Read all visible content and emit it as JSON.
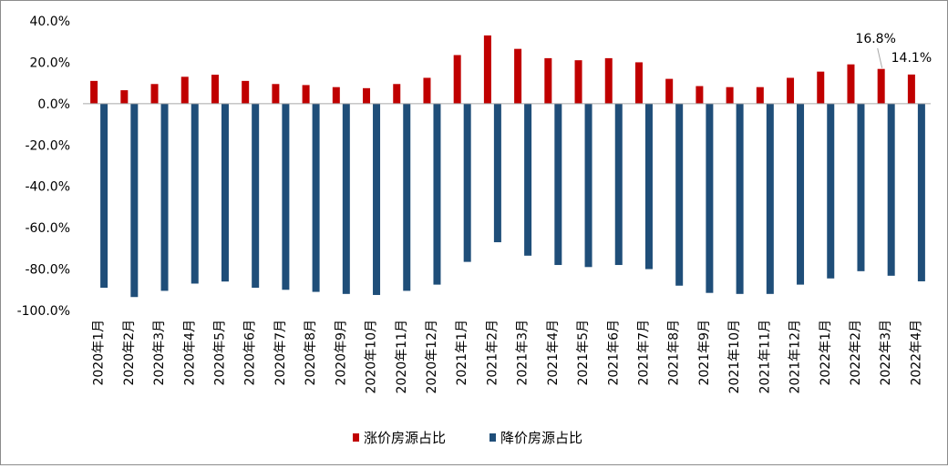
{
  "chart_data": {
    "type": "bar",
    "title": "",
    "xlabel": "",
    "ylabel": "",
    "ylim": [
      -100,
      40
    ],
    "yticks": [
      40,
      20,
      0,
      -20,
      -40,
      -60,
      -80,
      -100
    ],
    "ytick_labels": [
      "40.0%",
      "20.0%",
      "0.0%",
      "-20.0%",
      "-40.0%",
      "-60.0%",
      "-80.0%",
      "-100.0%"
    ],
    "grid": false,
    "legend_position": "bottom",
    "categories": [
      "2020年1月",
      "2020年2月",
      "2020年3月",
      "2020年4月",
      "2020年5月",
      "2020年6月",
      "2020年7月",
      "2020年8月",
      "2020年9月",
      "2020年10月",
      "2020年11月",
      "2020年12月",
      "2021年1月",
      "2021年2月",
      "2021年3月",
      "2021年4月",
      "2021年5月",
      "2021年6月",
      "2021年7月",
      "2021年8月",
      "2021年9月",
      "2021年10月",
      "2021年11月",
      "2021年12月",
      "2022年1月",
      "2022年2月",
      "2022年3月",
      "2022年4月"
    ],
    "series": [
      {
        "name": "涨价房源占比",
        "color": "#c00000",
        "values": [
          11.0,
          6.5,
          9.5,
          13.0,
          14.0,
          11.0,
          9.5,
          9.0,
          8.0,
          7.5,
          9.5,
          12.5,
          23.5,
          33.0,
          26.5,
          22.0,
          21.0,
          22.0,
          20.0,
          12.0,
          8.5,
          8.0,
          8.0,
          12.5,
          15.5,
          19.0,
          16.8,
          14.1
        ]
      },
      {
        "name": "降价房源占比",
        "color": "#1f4e79",
        "values": [
          -89.0,
          -93.5,
          -90.5,
          -87.0,
          -86.0,
          -89.0,
          -90.0,
          -91.0,
          -92.0,
          -92.5,
          -90.5,
          -87.5,
          -76.5,
          -67.0,
          -73.5,
          -78.0,
          -79.0,
          -78.0,
          -80.0,
          -88.0,
          -91.5,
          -92.0,
          -92.0,
          -87.5,
          -84.5,
          -81.0,
          -83.2,
          -85.9
        ]
      }
    ],
    "annotations": [
      {
        "category_index": 26,
        "series": 0,
        "text": "16.8%"
      },
      {
        "category_index": 27,
        "series": 0,
        "text": "14.1%"
      }
    ]
  }
}
